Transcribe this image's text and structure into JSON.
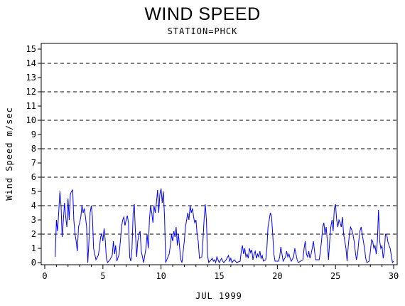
{
  "chart_data": {
    "type": "line",
    "title": "WIND SPEED",
    "subtitle": "STATION=PHCK",
    "xlabel": "JUL 1999",
    "ylabel": "Wind Speed m/sec",
    "xlim": [
      0,
      30
    ],
    "ylim": [
      0,
      15
    ],
    "x_ticks": [
      0,
      5,
      10,
      15,
      20,
      25,
      30
    ],
    "y_ticks": [
      0,
      1,
      2,
      3,
      4,
      5,
      6,
      7,
      8,
      9,
      10,
      11,
      12,
      13,
      14,
      15
    ],
    "reference_lines": [
      2,
      4,
      6,
      8,
      10,
      12,
      14
    ],
    "line_color": "#0000ff",
    "series": [
      {
        "values": [
          [
            0.9,
            0.4
          ],
          [
            1.0,
            3.0
          ],
          [
            1.1,
            2.2
          ],
          [
            1.2,
            3.5
          ],
          [
            1.3,
            5.0
          ],
          [
            1.4,
            4.0
          ],
          [
            1.5,
            1.8
          ],
          [
            1.6,
            3.0
          ],
          [
            1.7,
            4.2
          ],
          [
            1.8,
            3.2
          ],
          [
            1.9,
            2.5
          ],
          [
            2.0,
            4.5
          ],
          [
            2.1,
            3.0
          ],
          [
            2.2,
            4.8
          ],
          [
            2.3,
            5.0
          ],
          [
            2.4,
            5.1
          ],
          [
            2.5,
            3.0
          ],
          [
            2.6,
            2.0
          ],
          [
            2.7,
            1.5
          ],
          [
            2.8,
            0.8
          ],
          [
            2.9,
            2.5
          ],
          [
            3.0,
            2.8
          ],
          [
            3.1,
            3.2
          ],
          [
            3.2,
            4.0
          ],
          [
            3.3,
            3.5
          ],
          [
            3.4,
            3.8
          ],
          [
            3.5,
            3.2
          ],
          [
            3.6,
            2.5
          ],
          [
            3.7,
            0.0
          ],
          [
            3.8,
            1.5
          ],
          [
            3.9,
            3.5
          ],
          [
            4.0,
            4.0
          ],
          [
            4.1,
            3.2
          ],
          [
            4.2,
            1.0
          ],
          [
            4.3,
            0.6
          ],
          [
            4.4,
            0.2
          ],
          [
            4.6,
            0.5
          ],
          [
            4.7,
            1.0
          ],
          [
            4.8,
            1.8
          ],
          [
            4.9,
            2.0
          ],
          [
            5.0,
            1.5
          ],
          [
            5.1,
            2.4
          ],
          [
            5.2,
            1.6
          ],
          [
            5.3,
            0.3
          ],
          [
            5.4,
            0.0
          ],
          [
            5.6,
            0.2
          ],
          [
            5.8,
            0.5
          ],
          [
            5.9,
            1.5
          ],
          [
            6.0,
            0.6
          ],
          [
            6.1,
            1.2
          ],
          [
            6.2,
            0.1
          ],
          [
            6.4,
            0.6
          ],
          [
            6.5,
            1.5
          ],
          [
            6.6,
            2.5
          ],
          [
            6.7,
            3.0
          ],
          [
            6.8,
            3.2
          ],
          [
            6.9,
            2.6
          ],
          [
            7.0,
            3.0
          ],
          [
            7.1,
            3.3
          ],
          [
            7.2,
            2.8
          ],
          [
            7.3,
            0.4
          ],
          [
            7.4,
            0.1
          ],
          [
            7.5,
            1.0
          ],
          [
            7.6,
            3.5
          ],
          [
            7.7,
            4.1
          ],
          [
            7.8,
            2.0
          ],
          [
            7.9,
            0.4
          ],
          [
            8.0,
            1.5
          ],
          [
            8.1,
            2.0
          ],
          [
            8.2,
            2.2
          ],
          [
            8.3,
            0.8
          ],
          [
            8.4,
            0.4
          ],
          [
            8.5,
            0.0
          ],
          [
            8.7,
            1.0
          ],
          [
            8.8,
            2.0
          ],
          [
            8.9,
            1.0
          ],
          [
            9.0,
            3.0
          ],
          [
            9.1,
            4.0
          ],
          [
            9.2,
            3.5
          ],
          [
            9.3,
            2.8
          ],
          [
            9.4,
            4.0
          ],
          [
            9.5,
            3.5
          ],
          [
            9.6,
            4.2
          ],
          [
            9.7,
            5.1
          ],
          [
            9.8,
            3.5
          ],
          [
            9.9,
            4.8
          ],
          [
            10.0,
            5.2
          ],
          [
            10.1,
            4.2
          ],
          [
            10.2,
            5.0
          ],
          [
            10.3,
            3.2
          ],
          [
            10.4,
            0.0
          ],
          [
            10.5,
            0.2
          ],
          [
            10.7,
            0.6
          ],
          [
            10.8,
            1.2
          ],
          [
            10.9,
            2.0
          ],
          [
            11.0,
            1.5
          ],
          [
            11.1,
            2.2
          ],
          [
            11.2,
            1.8
          ],
          [
            11.3,
            2.5
          ],
          [
            11.4,
            1.2
          ],
          [
            11.5,
            2.0
          ],
          [
            11.6,
            1.0
          ],
          [
            11.7,
            0.2
          ],
          [
            11.8,
            0.0
          ],
          [
            11.9,
            0.8
          ],
          [
            12.0,
            1.5
          ],
          [
            12.1,
            2.5
          ],
          [
            12.2,
            3.0
          ],
          [
            12.3,
            3.5
          ],
          [
            12.4,
            3.0
          ],
          [
            12.5,
            4.0
          ],
          [
            12.6,
            3.5
          ],
          [
            12.7,
            3.8
          ],
          [
            12.8,
            3.2
          ],
          [
            12.9,
            2.8
          ],
          [
            13.0,
            3.0
          ],
          [
            13.1,
            2.0
          ],
          [
            13.2,
            1.5
          ],
          [
            13.3,
            0.3
          ],
          [
            13.5,
            0.4
          ],
          [
            13.6,
            1.5
          ],
          [
            13.7,
            3.0
          ],
          [
            13.8,
            4.1
          ],
          [
            13.9,
            3.0
          ],
          [
            14.0,
            0.5
          ],
          [
            14.1,
            0.0
          ],
          [
            14.4,
            0.3
          ],
          [
            14.5,
            0.1
          ],
          [
            14.6,
            0.2
          ],
          [
            14.7,
            0.0
          ],
          [
            14.8,
            0.4
          ],
          [
            14.9,
            0.2
          ],
          [
            15.0,
            0.0
          ],
          [
            15.2,
            0.3
          ],
          [
            15.3,
            0.1
          ],
          [
            15.4,
            0.0
          ],
          [
            15.6,
            0.2
          ],
          [
            15.8,
            0.5
          ],
          [
            15.9,
            0.1
          ],
          [
            16.0,
            0.3
          ],
          [
            16.1,
            0.0
          ],
          [
            16.3,
            0.2
          ],
          [
            16.5,
            0.0
          ],
          [
            16.8,
            0.1
          ],
          [
            16.9,
            0.8
          ],
          [
            17.0,
            1.2
          ],
          [
            17.1,
            0.6
          ],
          [
            17.2,
            1.0
          ],
          [
            17.3,
            0.4
          ],
          [
            17.4,
            0.6
          ],
          [
            17.5,
            0.3
          ],
          [
            17.6,
            1.0
          ],
          [
            17.7,
            0.7
          ],
          [
            17.8,
            0.9
          ],
          [
            17.9,
            0.2
          ],
          [
            18.0,
            0.6
          ],
          [
            18.1,
            0.8
          ],
          [
            18.2,
            0.3
          ],
          [
            18.3,
            0.6
          ],
          [
            18.4,
            0.4
          ],
          [
            18.5,
            0.8
          ],
          [
            18.6,
            0.3
          ],
          [
            18.7,
            0.5
          ],
          [
            18.8,
            0.1
          ],
          [
            19.0,
            0.2
          ],
          [
            19.1,
            1.0
          ],
          [
            19.2,
            2.5
          ],
          [
            19.3,
            3.0
          ],
          [
            19.4,
            3.5
          ],
          [
            19.5,
            3.2
          ],
          [
            19.6,
            2.0
          ],
          [
            19.7,
            0.6
          ],
          [
            19.8,
            0.1
          ],
          [
            20.1,
            0.1
          ],
          [
            20.2,
            0.4
          ],
          [
            20.3,
            1.1
          ],
          [
            20.4,
            0.6
          ],
          [
            20.5,
            0.1
          ],
          [
            20.7,
            0.4
          ],
          [
            20.8,
            0.8
          ],
          [
            20.9,
            0.4
          ],
          [
            21.0,
            0.6
          ],
          [
            21.1,
            0.3
          ],
          [
            21.2,
            0.1
          ],
          [
            21.4,
            0.4
          ],
          [
            21.5,
            1.0
          ],
          [
            21.6,
            0.6
          ],
          [
            21.7,
            0.2
          ],
          [
            21.8,
            0.0
          ],
          [
            22.2,
            0.2
          ],
          [
            22.3,
            1.0
          ],
          [
            22.4,
            1.5
          ],
          [
            22.5,
            0.6
          ],
          [
            22.6,
            0.4
          ],
          [
            22.7,
            0.8
          ],
          [
            22.8,
            0.3
          ],
          [
            22.9,
            0.6
          ],
          [
            23.0,
            1.0
          ],
          [
            23.1,
            1.5
          ],
          [
            23.2,
            0.8
          ],
          [
            23.3,
            0.2
          ],
          [
            23.6,
            0.2
          ],
          [
            23.7,
            0.8
          ],
          [
            23.8,
            1.5
          ],
          [
            23.9,
            2.5
          ],
          [
            24.0,
            2.8
          ],
          [
            24.1,
            2.0
          ],
          [
            24.2,
            2.5
          ],
          [
            24.3,
            1.5
          ],
          [
            24.4,
            0.2
          ],
          [
            24.5,
            1.5
          ],
          [
            24.6,
            2.5
          ],
          [
            24.7,
            3.0
          ],
          [
            24.8,
            2.2
          ],
          [
            24.9,
            3.8
          ],
          [
            25.0,
            4.1
          ],
          [
            25.1,
            3.0
          ],
          [
            25.2,
            2.5
          ],
          [
            25.3,
            3.0
          ],
          [
            25.4,
            2.8
          ],
          [
            25.5,
            2.5
          ],
          [
            25.6,
            3.2
          ],
          [
            25.7,
            2.0
          ],
          [
            25.8,
            1.5
          ],
          [
            25.9,
            1.0
          ],
          [
            26.0,
            0.1
          ],
          [
            26.1,
            1.2
          ],
          [
            26.2,
            2.0
          ],
          [
            26.3,
            2.5
          ],
          [
            26.4,
            2.3
          ],
          [
            26.5,
            2.0
          ],
          [
            26.6,
            1.5
          ],
          [
            26.7,
            0.8
          ],
          [
            26.8,
            0.2
          ],
          [
            26.9,
            0.6
          ],
          [
            27.0,
            1.5
          ],
          [
            27.1,
            2.2
          ],
          [
            27.2,
            2.5
          ],
          [
            27.3,
            2.0
          ],
          [
            27.4,
            1.5
          ],
          [
            27.5,
            1.0
          ],
          [
            27.6,
            0.3
          ],
          [
            27.7,
            0.0
          ],
          [
            27.9,
            0.1
          ],
          [
            28.0,
            0.8
          ],
          [
            28.1,
            1.6
          ],
          [
            28.2,
            1.5
          ],
          [
            28.3,
            1.0
          ],
          [
            28.4,
            1.2
          ],
          [
            28.5,
            0.6
          ],
          [
            28.6,
            1.5
          ],
          [
            28.7,
            3.7
          ],
          [
            28.8,
            1.5
          ],
          [
            28.9,
            1.0
          ],
          [
            29.0,
            1.2
          ],
          [
            29.1,
            0.3
          ],
          [
            29.2,
            0.8
          ],
          [
            29.3,
            2.0
          ],
          [
            29.4,
            2.0
          ],
          [
            29.5,
            1.5
          ],
          [
            29.6,
            1.2
          ],
          [
            29.7,
            1.0
          ],
          [
            29.8,
            0.5
          ],
          [
            29.9,
            0.0
          ],
          [
            30.0,
            0.1
          ]
        ]
      }
    ]
  }
}
